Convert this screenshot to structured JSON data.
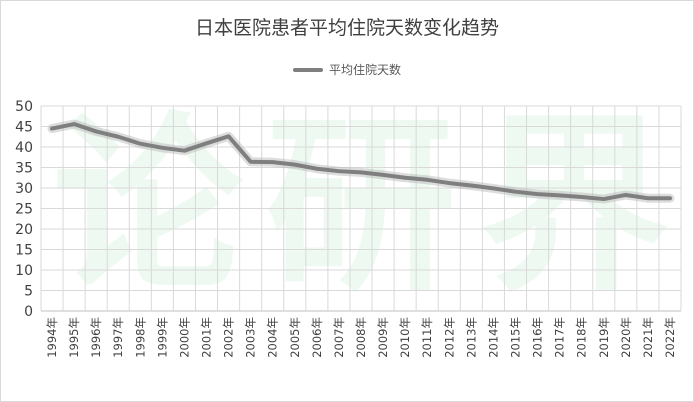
{
  "chart_data": {
    "type": "line",
    "title": "日本医院患者平均住院天数变化趋势",
    "xlabel": "",
    "ylabel": "",
    "ylim": [
      0,
      50
    ],
    "yticks": [
      0,
      5,
      10,
      15,
      20,
      25,
      30,
      35,
      40,
      45,
      50
    ],
    "grid": true,
    "legend_position": "top-center",
    "categories": [
      "1994年",
      "1995年",
      "1996年",
      "1997年",
      "1998年",
      "1999年",
      "2000年",
      "2001年",
      "2002年",
      "2003年",
      "2004年",
      "2005年",
      "2006年",
      "2007年",
      "2008年",
      "2009年",
      "2010年",
      "2011年",
      "2012年",
      "2013年",
      "2014年",
      "2015年",
      "2016年",
      "2017年",
      "2018年",
      "2019年",
      "2020年",
      "2021年",
      "2022年"
    ],
    "series": [
      {
        "name": "平均住院天数",
        "color": "#7f7f7f",
        "values": [
          44.5,
          45.6,
          43.8,
          42.5,
          40.8,
          39.8,
          39.1,
          40.9,
          42.6,
          36.4,
          36.3,
          35.7,
          34.7,
          34.1,
          33.8,
          33.2,
          32.5,
          32.0,
          31.2,
          30.6,
          29.9,
          29.1,
          28.5,
          28.2,
          27.8,
          27.3,
          28.3,
          27.5,
          27.5
        ]
      }
    ]
  },
  "watermark": "论研界"
}
